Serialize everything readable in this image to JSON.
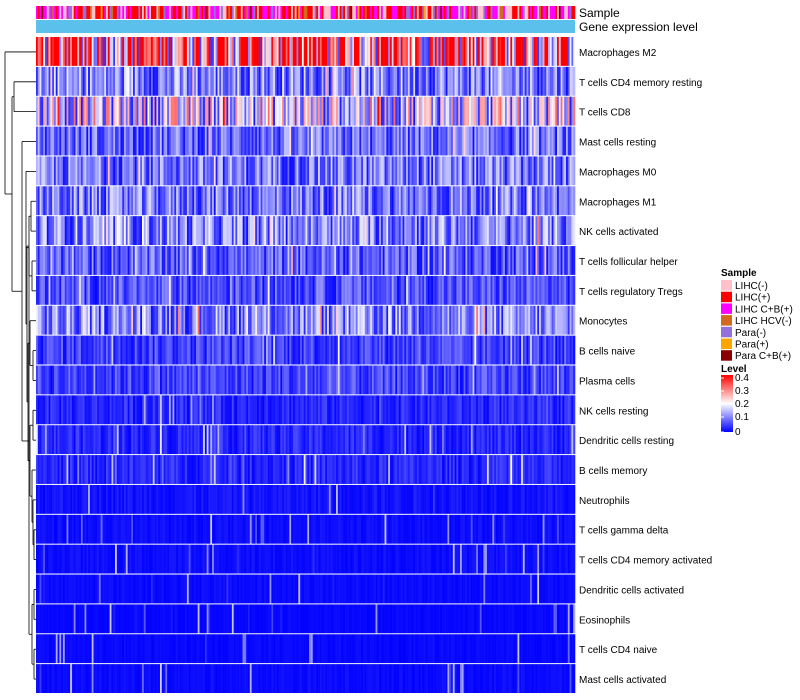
{
  "chart_data": {
    "type": "heatmap",
    "title": "",
    "annotation_tracks": [
      "Sample",
      "Gene expression level"
    ],
    "rows": [
      {
        "name": "Macrophages M2",
        "level": 0.32
      },
      {
        "name": "T cells CD4 memory resting",
        "level": 0.1
      },
      {
        "name": "T cells CD8",
        "level": 0.17
      },
      {
        "name": "Mast cells resting",
        "level": 0.08
      },
      {
        "name": "Macrophages M0",
        "level": 0.09
      },
      {
        "name": "Macrophages M1",
        "level": 0.09
      },
      {
        "name": "NK cells activated",
        "level": 0.1
      },
      {
        "name": "T cells follicular helper",
        "level": 0.07
      },
      {
        "name": "T cells regulatory  Tregs",
        "level": 0.06
      },
      {
        "name": "Monocytes",
        "level": 0.1
      },
      {
        "name": "B cells naive",
        "level": 0.05
      },
      {
        "name": "Plasma cells",
        "level": 0.05
      },
      {
        "name": "NK cells resting",
        "level": 0.03
      },
      {
        "name": "Dendritic cells resting",
        "level": 0.03
      },
      {
        "name": "B cells memory",
        "level": 0.03
      },
      {
        "name": "Neutrophils",
        "level": 0.015
      },
      {
        "name": "T cells gamma delta",
        "level": 0.01
      },
      {
        "name": "T cells CD4 memory activated",
        "level": 0.01
      },
      {
        "name": "Dendritic cells activated",
        "level": 0.008
      },
      {
        "name": "Eosinophils",
        "level": 0.005
      },
      {
        "name": "T cells CD4 naive",
        "level": 0.006
      },
      {
        "name": "Mast cells activated",
        "level": 0.008
      }
    ],
    "sample_legend": {
      "title": "Sample",
      "entries": [
        {
          "label": "LIHC(-)",
          "color": "#ffc0cb"
        },
        {
          "label": "LIHC(+)",
          "color": "#ff0000"
        },
        {
          "label": "LIHC C+B(+)",
          "color": "#ff00ff"
        },
        {
          "label": "LIHC HCV(-)",
          "color": "#d2691e"
        },
        {
          "label": "Para(-)",
          "color": "#9370db"
        },
        {
          "label": "Para(+)",
          "color": "#ffa500"
        },
        {
          "label": "Para C+B(+)",
          "color": "#8b0000"
        }
      ]
    },
    "level_legend": {
      "title": "Level",
      "range": [
        0,
        0.4
      ],
      "ticks": [
        "0.4",
        "0.3",
        "0.2",
        "0.1",
        "0"
      ],
      "colors": [
        "#0000ff",
        "#ffffff",
        "#ff0000"
      ]
    },
    "expression_track_color": "#5bc0eb"
  }
}
